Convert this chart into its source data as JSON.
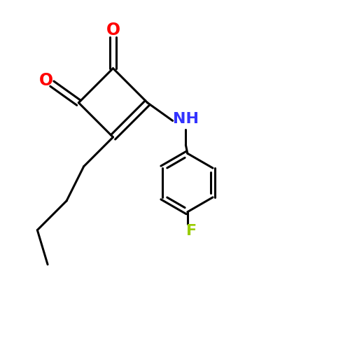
{
  "background_color": "#ffffff",
  "bond_color": "#000000",
  "o_color": "#ff0000",
  "n_color": "#3333ff",
  "f_color": "#99cc00",
  "line_width": 2.2,
  "figsize": [
    5.0,
    5.0
  ],
  "dpi": 100,
  "xlim": [
    0,
    10
  ],
  "ylim": [
    0,
    10
  ]
}
